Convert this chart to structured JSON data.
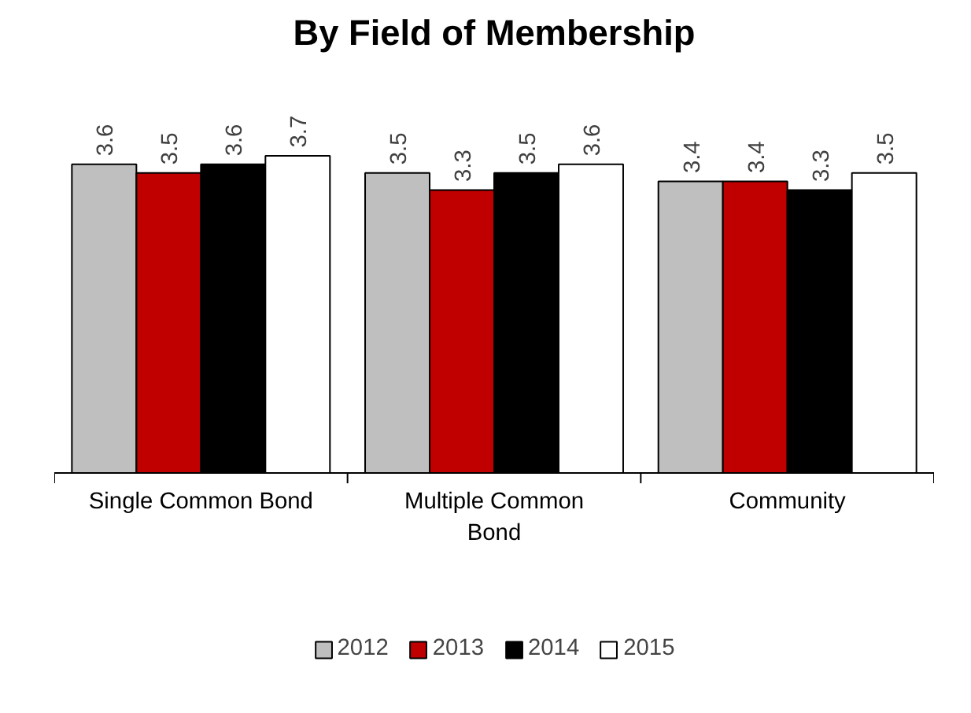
{
  "chart_data": {
    "type": "bar",
    "title": "By Field of Membership",
    "categories": [
      "Single Common Bond",
      "Multiple Common Bond",
      "Community"
    ],
    "series": [
      {
        "name": "2012",
        "color": "#bfbfbf",
        "values": [
          3.6,
          3.5,
          3.4
        ]
      },
      {
        "name": "2013",
        "color": "#c00000",
        "values": [
          3.5,
          3.3,
          3.4
        ]
      },
      {
        "name": "2014",
        "color": "#000000",
        "values": [
          3.6,
          3.5,
          3.3
        ]
      },
      {
        "name": "2015",
        "color": "#ffffff",
        "values": [
          3.7,
          3.6,
          3.5
        ]
      }
    ],
    "data_labels": true,
    "legend": "bottom"
  }
}
